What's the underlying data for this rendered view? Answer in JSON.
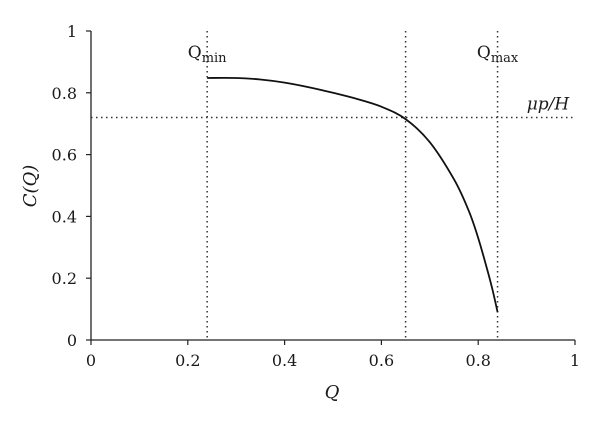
{
  "chart_data": {
    "type": "line",
    "xlabel": "Q",
    "ylabel": "C(Q)",
    "xlim": [
      0,
      1
    ],
    "ylim": [
      0,
      1
    ],
    "x_ticks": [
      "0",
      "0.2",
      "0.4",
      "0.6",
      "0.8",
      "1"
    ],
    "y_ticks": [
      "0",
      "0.2",
      "0.4",
      "0.6",
      "0.8",
      "1"
    ],
    "grid": false,
    "series": [
      {
        "x": [
          0.24,
          0.3,
          0.35,
          0.4,
          0.45,
          0.5,
          0.55,
          0.6,
          0.65,
          0.7,
          0.75,
          0.78,
          0.8,
          0.82,
          0.83,
          0.84
        ],
        "y": [
          0.848,
          0.848,
          0.843,
          0.833,
          0.818,
          0.8,
          0.78,
          0.755,
          0.715,
          0.64,
          0.52,
          0.42,
          0.33,
          0.22,
          0.16,
          0.09
        ]
      }
    ],
    "reference_lines": {
      "vertical": [
        {
          "x": 0.24,
          "label_main": "Q",
          "label_sub": "min"
        },
        {
          "x": 0.65
        },
        {
          "x": 0.84,
          "label_main": "Q",
          "label_sub": "max"
        }
      ],
      "horizontal": [
        {
          "y": 0.72,
          "label": "μp/H"
        }
      ]
    },
    "line_color": "#111111",
    "reference_color": "#333333"
  }
}
